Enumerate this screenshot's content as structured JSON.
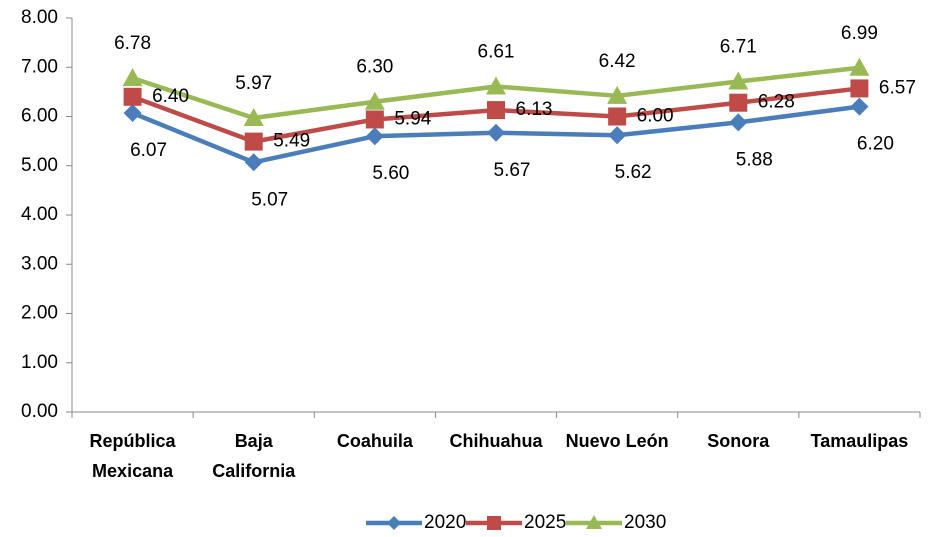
{
  "chart_data": {
    "type": "line",
    "categories": [
      "República Mexicana",
      "Baja California",
      "Coahuila",
      "Chihuahua",
      "Nuevo León",
      "Sonora",
      "Tamaulipas"
    ],
    "series": [
      {
        "name": "2020",
        "color": "#4a7ebb",
        "marker": "diamond",
        "values": [
          6.07,
          5.07,
          5.6,
          5.67,
          5.62,
          5.88,
          6.2
        ],
        "value_labels": [
          "6.07",
          "5.07",
          "5.60",
          "5.67",
          "5.62",
          "5.88",
          "6.20"
        ]
      },
      {
        "name": "2025",
        "color": "#be4b48",
        "marker": "square",
        "values": [
          6.4,
          5.49,
          5.94,
          6.13,
          6.0,
          6.28,
          6.57
        ],
        "value_labels": [
          "6.40",
          "5.49",
          "5.94",
          "6.13",
          "6.00",
          "6.28",
          "6.57"
        ]
      },
      {
        "name": "2030",
        "color": "#98b954",
        "marker": "triangle",
        "values": [
          6.78,
          5.97,
          6.3,
          6.61,
          6.42,
          6.71,
          6.99
        ],
        "value_labels": [
          "6.78",
          "5.97",
          "6.30",
          "6.61",
          "6.42",
          "6.71",
          "6.99"
        ]
      }
    ],
    "ylim": [
      0,
      8
    ],
    "yticks": [
      {
        "value": 0,
        "label": "0.00"
      },
      {
        "value": 1,
        "label": "1.00"
      },
      {
        "value": 2,
        "label": "2.00"
      },
      {
        "value": 3,
        "label": "3.00"
      },
      {
        "value": 4,
        "label": "4.00"
      },
      {
        "value": 5,
        "label": "5.00"
      },
      {
        "value": 6,
        "label": "6.00"
      },
      {
        "value": 7,
        "label": "7.00"
      },
      {
        "value": 8,
        "label": "8.00"
      }
    ],
    "grid": false,
    "legend": "bottom"
  }
}
